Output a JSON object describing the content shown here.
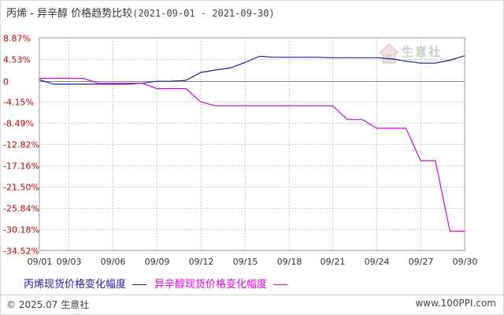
{
  "header": {
    "title": "丙烯 - 异辛醇 价格趋势比较",
    "date_range": "(2021-09-01 - 2021-09-30)"
  },
  "watermark": {
    "text": "生意社",
    "sub": "www.100ppi.com"
  },
  "legend": [
    {
      "label": "丙烯现货价格变化幅度",
      "color": "#2020a0"
    },
    {
      "label": "异辛醇现货价格变化幅度",
      "color": "#e000e0"
    }
  ],
  "footer": {
    "left": "© 2025.07 生意社",
    "right": "www.100PPI.com"
  },
  "chart_data": {
    "type": "line",
    "x_tick_labels": [
      "09/01",
      "09/03",
      "09/06",
      "09/09",
      "09/12",
      "09/15",
      "09/18",
      "09/21",
      "09/24",
      "09/27",
      "09/30"
    ],
    "x_tick_day": [
      1,
      3,
      6,
      9,
      12,
      15,
      18,
      21,
      24,
      27,
      30
    ],
    "xlim": [
      1,
      30
    ],
    "y_ticks": [
      8.87,
      4.53,
      0,
      -4.15,
      -8.49,
      -12.82,
      -17.16,
      -21.5,
      -25.84,
      -30.18,
      -34.52
    ],
    "y_tick_labels": [
      "8.87%",
      "4.53%",
      "0",
      "-4.15%",
      "-8.49%",
      "-12.82%",
      "-17.16%",
      "-21.50%",
      "-25.84%",
      "-30.18%",
      "-34.52%"
    ],
    "ylim": [
      -34.52,
      8.87
    ],
    "grid": true,
    "series": [
      {
        "name": "丙烯现货价格变化幅度",
        "color": "#2020a0",
        "points": [
          [
            1,
            0.3
          ],
          [
            2,
            -0.6
          ],
          [
            3,
            -0.6
          ],
          [
            4,
            -0.6
          ],
          [
            5,
            -0.6
          ],
          [
            6,
            -0.6
          ],
          [
            7,
            -0.6
          ],
          [
            8,
            -0.4
          ],
          [
            9,
            0.0
          ],
          [
            10,
            0.0
          ],
          [
            11,
            0.2
          ],
          [
            12,
            1.8
          ],
          [
            13,
            2.3
          ],
          [
            14,
            2.7
          ],
          [
            15,
            3.8
          ],
          [
            16,
            5.1
          ],
          [
            17,
            4.9
          ],
          [
            18,
            4.9
          ],
          [
            19,
            4.9
          ],
          [
            20,
            4.9
          ],
          [
            21,
            4.8
          ],
          [
            22,
            4.8
          ],
          [
            23,
            4.8
          ],
          [
            24,
            4.8
          ],
          [
            25,
            4.6
          ],
          [
            26,
            4.1
          ],
          [
            27,
            3.7
          ],
          [
            28,
            3.7
          ],
          [
            29,
            4.3
          ],
          [
            30,
            5.2
          ]
        ]
      },
      {
        "name": "异辛醇现货价格变化幅度",
        "color": "#e000e0",
        "points": [
          [
            1,
            0.6
          ],
          [
            2,
            0.6
          ],
          [
            3,
            0.6
          ],
          [
            4,
            0.6
          ],
          [
            5,
            -0.4
          ],
          [
            6,
            -0.4
          ],
          [
            7,
            -0.4
          ],
          [
            8,
            -0.4
          ],
          [
            9,
            -1.5
          ],
          [
            10,
            -1.5
          ],
          [
            11,
            -1.5
          ],
          [
            12,
            -4.2
          ],
          [
            13,
            -5.0
          ],
          [
            14,
            -5.0
          ],
          [
            15,
            -5.0
          ],
          [
            16,
            -5.0
          ],
          [
            17,
            -5.0
          ],
          [
            18,
            -5.0
          ],
          [
            19,
            -5.0
          ],
          [
            20,
            -5.0
          ],
          [
            21,
            -5.0
          ],
          [
            22,
            -7.8
          ],
          [
            23,
            -7.8
          ],
          [
            24,
            -9.6
          ],
          [
            25,
            -9.6
          ],
          [
            26,
            -9.6
          ],
          [
            27,
            -16.2
          ],
          [
            28,
            -16.2
          ],
          [
            29,
            -30.6
          ],
          [
            30,
            -30.6
          ]
        ]
      }
    ]
  }
}
